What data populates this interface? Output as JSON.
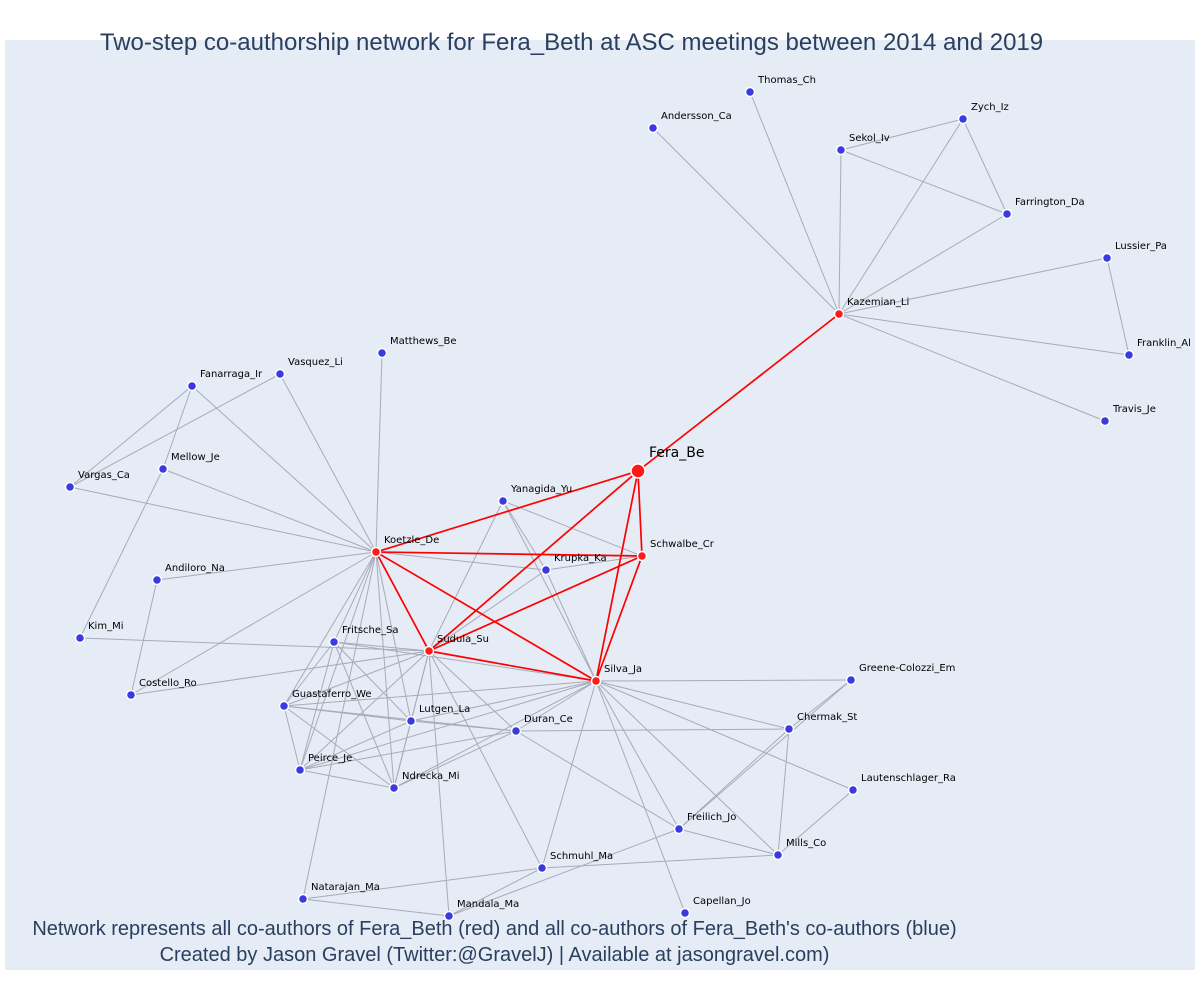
{
  "title": "Two-step co-authorship network for Fera_Beth at ASC meetings between 2014 and 2019",
  "footer": {
    "line1": "Network represents all co-authors of Fera_Beth (red) and all co-authors of Fera_Beth's co-authors (blue)",
    "line2": "Created by Jason Gravel (Twitter:@GravelJ) | Available at jasongravel.com)"
  },
  "colors": {
    "background": "#e5ecf6",
    "first_step": "#ff1a1a",
    "second_step": "#3a3ae0",
    "edge": "#a9aab8",
    "text": "#2a3f5f"
  },
  "focus_author": "Fera_Be",
  "first_step_authors": [
    "Fera_Be",
    "Kazemian_Li",
    "Koetzle_De",
    "Schwalbe_Cr",
    "Sudula_Su",
    "Silva_Ja"
  ],
  "second_step_authors": [
    "Thomas_Ch",
    "Andersson_Ca",
    "Zych_Iz",
    "Sekol_Iv",
    "Farrington_Da",
    "Lussier_Pa",
    "Franklin_Al",
    "Travis_Je",
    "Matthews_Be",
    "Fanarraga_Ir",
    "Vasquez_Li",
    "Mellow_Je",
    "Vargas_Ca",
    "Yanagida_Yu",
    "Krupka_Ka",
    "Andiloro_Na",
    "Kim_Mi",
    "Fritsche_Sa",
    "Costello_Ro",
    "Guastaferro_We",
    "Lutgen_La",
    "Duran_Ce",
    "Greene-Colozzi_Em",
    "Chermak_St",
    "Peirce_Je",
    "Ndrecka_Mi",
    "Lautenschlager_Ra",
    "Freilich_Jo",
    "Mills_Co",
    "Schmuhl_Ma",
    "Natarajan_Ma",
    "Mandala_Ma",
    "Capellan_Jo"
  ],
  "edges_first_step": [
    [
      "Fera_Be",
      "Kazemian_Li"
    ],
    [
      "Fera_Be",
      "Koetzle_De"
    ],
    [
      "Fera_Be",
      "Schwalbe_Cr"
    ],
    [
      "Fera_Be",
      "Sudula_Su"
    ],
    [
      "Fera_Be",
      "Silva_Ja"
    ],
    [
      "Koetzle_De",
      "Schwalbe_Cr"
    ],
    [
      "Koetzle_De",
      "Sudula_Su"
    ],
    [
      "Koetzle_De",
      "Silva_Ja"
    ],
    [
      "Schwalbe_Cr",
      "Sudula_Su"
    ],
    [
      "Schwalbe_Cr",
      "Silva_Ja"
    ],
    [
      "Sudula_Su",
      "Silva_Ja"
    ]
  ],
  "edges_second_step": [
    [
      "Kazemian_Li",
      "Andersson_Ca"
    ],
    [
      "Kazemian_Li",
      "Thomas_Ch"
    ],
    [
      "Kazemian_Li",
      "Sekol_Iv"
    ],
    [
      "Kazemian_Li",
      "Zych_Iz"
    ],
    [
      "Kazemian_Li",
      "Farrington_Da"
    ],
    [
      "Kazemian_Li",
      "Lussier_Pa"
    ],
    [
      "Kazemian_Li",
      "Franklin_Al"
    ],
    [
      "Kazemian_Li",
      "Travis_Je"
    ],
    [
      "Sekol_Iv",
      "Zych_Iz"
    ],
    [
      "Sekol_Iv",
      "Farrington_Da"
    ],
    [
      "Zych_Iz",
      "Farrington_Da"
    ],
    [
      "Lussier_Pa",
      "Franklin_Al"
    ],
    [
      "Koetzle_De",
      "Matthews_Be"
    ],
    [
      "Koetzle_De",
      "Vasquez_Li"
    ],
    [
      "Koetzle_De",
      "Fanarraga_Ir"
    ],
    [
      "Koetzle_De",
      "Mellow_Je"
    ],
    [
      "Koetzle_De",
      "Vargas_Ca"
    ],
    [
      "Koetzle_De",
      "Andiloro_Na"
    ],
    [
      "Koetzle_De",
      "Costello_Ro"
    ],
    [
      "Koetzle_De",
      "Fritsche_Sa"
    ],
    [
      "Koetzle_De",
      "Guastaferro_We"
    ],
    [
      "Koetzle_De",
      "Lutgen_La"
    ],
    [
      "Koetzle_De",
      "Peirce_Je"
    ],
    [
      "Koetzle_De",
      "Ndrecka_Mi"
    ],
    [
      "Koetzle_De",
      "Krupka_Ka"
    ],
    [
      "Koetzle_De",
      "Natarajan_Ma"
    ],
    [
      "Fanarraga_Ir",
      "Vargas_Ca"
    ],
    [
      "Fanarraga_Ir",
      "Mellow_Je"
    ],
    [
      "Vasquez_Li",
      "Vargas_Ca"
    ],
    [
      "Mellow_Je",
      "Kim_Mi"
    ],
    [
      "Andiloro_Na",
      "Costello_Ro"
    ],
    [
      "Yanagida_Yu",
      "Schwalbe_Cr"
    ],
    [
      "Yanagida_Yu",
      "Krupka_Ka"
    ],
    [
      "Yanagida_Yu",
      "Sudula_Su"
    ],
    [
      "Yanagida_Yu",
      "Silva_Ja"
    ],
    [
      "Krupka_Ka",
      "Schwalbe_Cr"
    ],
    [
      "Krupka_Ka",
      "Sudula_Su"
    ],
    [
      "Krupka_Ka",
      "Silva_Ja"
    ],
    [
      "Sudula_Su",
      "Kim_Mi"
    ],
    [
      "Sudula_Su",
      "Costello_Ro"
    ],
    [
      "Sudula_Su",
      "Fritsche_Sa"
    ],
    [
      "Sudula_Su",
      "Guastaferro_We"
    ],
    [
      "Sudula_Su",
      "Lutgen_La"
    ],
    [
      "Sudula_Su",
      "Duran_Ce"
    ],
    [
      "Sudula_Su",
      "Peirce_Je"
    ],
    [
      "Sudula_Su",
      "Ndrecka_Mi"
    ],
    [
      "Sudula_Su",
      "Schmuhl_Ma"
    ],
    [
      "Sudula_Su",
      "Mandala_Ma"
    ],
    [
      "Silva_Ja",
      "Fritsche_Sa"
    ],
    [
      "Silva_Ja",
      "Guastaferro_We"
    ],
    [
      "Silva_Ja",
      "Lutgen_La"
    ],
    [
      "Silva_Ja",
      "Duran_Ce"
    ],
    [
      "Silva_Ja",
      "Peirce_Je"
    ],
    [
      "Silva_Ja",
      "Ndrecka_Mi"
    ],
    [
      "Silva_Ja",
      "Greene-Colozzi_Em"
    ],
    [
      "Silva_Ja",
      "Chermak_St"
    ],
    [
      "Silva_Ja",
      "Freilich_Jo"
    ],
    [
      "Silva_Ja",
      "Mills_Co"
    ],
    [
      "Silva_Ja",
      "Schmuhl_Ma"
    ],
    [
      "Silva_Ja",
      "Capellan_Jo"
    ],
    [
      "Fritsche_Sa",
      "Guastaferro_We"
    ],
    [
      "Fritsche_Sa",
      "Lutgen_La"
    ],
    [
      "Fritsche_Sa",
      "Peirce_Je"
    ],
    [
      "Fritsche_Sa",
      "Ndrecka_Mi"
    ],
    [
      "Guastaferro_We",
      "Lutgen_La"
    ],
    [
      "Guastaferro_We",
      "Duran_Ce"
    ],
    [
      "Guastaferro_We",
      "Peirce_Je"
    ],
    [
      "Guastaferro_We",
      "Ndrecka_Mi"
    ],
    [
      "Lutgen_La",
      "Duran_Ce"
    ],
    [
      "Lutgen_La",
      "Peirce_Je"
    ],
    [
      "Lutgen_La",
      "Ndrecka_Mi"
    ],
    [
      "Peirce_Je",
      "Ndrecka_Mi"
    ],
    [
      "Peirce_Je",
      "Duran_Ce"
    ],
    [
      "Ndrecka_Mi",
      "Duran_Ce"
    ],
    [
      "Duran_Ce",
      "Chermak_St"
    ],
    [
      "Duran_Ce",
      "Freilich_Jo"
    ],
    [
      "Chermak_St",
      "Greene-Colozzi_Em"
    ],
    [
      "Chermak_St",
      "Freilich_Jo"
    ],
    [
      "Chermak_St",
      "Mills_Co"
    ],
    [
      "Greene-Colozzi_Em",
      "Freilich_Jo"
    ],
    [
      "Lautenschlager_Ra",
      "Mills_Co"
    ],
    [
      "Freilich_Jo",
      "Mills_Co"
    ],
    [
      "Schmuhl_Ma",
      "Mills_Co"
    ],
    [
      "Schmuhl_Ma",
      "Natarajan_Ma"
    ],
    [
      "Schmuhl_Ma",
      "Mandala_Ma"
    ],
    [
      "Natarajan_Ma",
      "Mandala_Ma"
    ],
    [
      "Mandala_Ma",
      "Freilich_Jo"
    ],
    [
      "Silva_Ja",
      "Lautenschlager_Ra"
    ]
  ]
}
